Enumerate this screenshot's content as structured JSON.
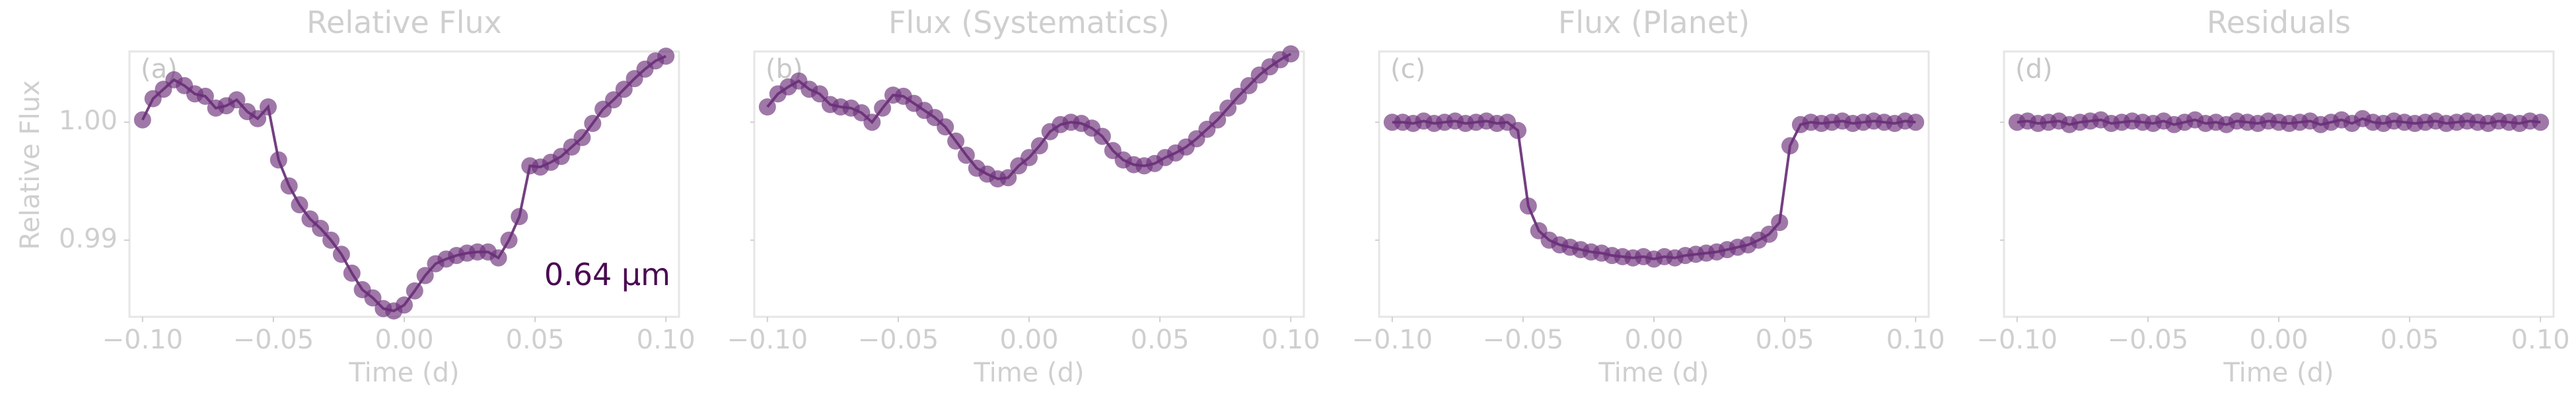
{
  "chart_data": [
    {
      "type": "line",
      "panel_label": "(a)",
      "title": "Relative Flux",
      "xlabel": "Time (d)",
      "ylabel": "Relative Flux",
      "annotation": "0.64 μm",
      "xlim": [
        -0.105,
        0.105
      ],
      "ylim": [
        0.9835,
        1.006
      ],
      "xticks": [
        -0.1,
        -0.05,
        0.0,
        0.05,
        0.1
      ],
      "xtick_labels": [
        "−0.10",
        "−0.05",
        "0.00",
        "0.05",
        "0.10"
      ],
      "yticks": [
        0.99,
        1.0
      ],
      "ytick_labels": [
        "0.99",
        "1.00"
      ],
      "series": [
        {
          "x": [
            -0.1,
            -0.096,
            -0.092,
            -0.088,
            -0.084,
            -0.08,
            -0.076,
            -0.072,
            -0.068,
            -0.064,
            -0.06,
            -0.056,
            -0.052,
            -0.048,
            -0.044,
            -0.04,
            -0.036,
            -0.032,
            -0.028,
            -0.024,
            -0.02,
            -0.016,
            -0.012,
            -0.008,
            -0.004,
            0.0,
            0.004,
            0.008,
            0.012,
            0.016,
            0.02,
            0.024,
            0.028,
            0.032,
            0.036,
            0.04,
            0.044,
            0.048,
            0.052,
            0.056,
            0.06,
            0.064,
            0.068,
            0.072,
            0.076,
            0.08,
            0.084,
            0.088,
            0.092,
            0.096,
            0.1
          ],
          "values": [
            1.0002,
            1.002,
            1.0028,
            1.0036,
            1.0031,
            1.0024,
            1.0022,
            1.0012,
            1.0014,
            1.0019,
            1.0009,
            1.0003,
            1.0013,
            0.9968,
            0.9946,
            0.993,
            0.9918,
            0.991,
            0.99,
            0.9888,
            0.9872,
            0.9858,
            0.9851,
            0.9842,
            0.984,
            0.9845,
            0.9857,
            0.987,
            0.988,
            0.9884,
            0.9887,
            0.9889,
            0.989,
            0.989,
            0.9885,
            0.99,
            0.992,
            0.9963,
            0.9962,
            0.9966,
            0.9971,
            0.9979,
            0.9987,
            0.9999,
            1.0011,
            1.0019,
            1.0028,
            1.0037,
            1.0045,
            1.0052,
            1.0056
          ]
        }
      ]
    },
    {
      "type": "line",
      "panel_label": "(b)",
      "title": "Flux (Systematics)",
      "xlabel": "Time (d)",
      "xlim": [
        -0.105,
        0.105
      ],
      "ylim": [
        0.9835,
        1.006
      ],
      "xticks": [
        -0.1,
        -0.05,
        0.0,
        0.05,
        0.1
      ],
      "xtick_labels": [
        "−0.10",
        "−0.05",
        "0.00",
        "0.05",
        "0.10"
      ],
      "series": [
        {
          "x": [
            -0.1,
            -0.096,
            -0.092,
            -0.088,
            -0.084,
            -0.08,
            -0.076,
            -0.072,
            -0.068,
            -0.064,
            -0.06,
            -0.056,
            -0.052,
            -0.048,
            -0.044,
            -0.04,
            -0.036,
            -0.032,
            -0.028,
            -0.024,
            -0.02,
            -0.016,
            -0.012,
            -0.008,
            -0.004,
            0.0,
            0.004,
            0.008,
            0.012,
            0.016,
            0.02,
            0.024,
            0.028,
            0.032,
            0.036,
            0.04,
            0.044,
            0.048,
            0.052,
            0.056,
            0.06,
            0.064,
            0.068,
            0.072,
            0.076,
            0.08,
            0.084,
            0.088,
            0.092,
            0.096,
            0.1
          ],
          "values": [
            1.0013,
            1.0024,
            1.003,
            1.0035,
            1.0028,
            1.0024,
            1.0015,
            1.0013,
            1.0012,
            1.0008,
            1.0,
            1.0012,
            1.0023,
            1.0022,
            1.0016,
            1.001,
            1.0004,
            0.9996,
            0.9984,
            0.9972,
            0.9961,
            0.9956,
            0.9952,
            0.9953,
            0.9963,
            0.997,
            0.998,
            0.9992,
            0.9998,
            1.0,
            0.9999,
            0.9995,
            0.9988,
            0.9976,
            0.9968,
            0.9964,
            0.9963,
            0.9965,
            0.997,
            0.9974,
            0.9979,
            0.9986,
            0.9994,
            1.0002,
            1.0012,
            1.0022,
            1.0031,
            1.004,
            1.0047,
            1.0053,
            1.0058
          ]
        }
      ]
    },
    {
      "type": "line",
      "panel_label": "(c)",
      "title": "Flux (Planet)",
      "xlabel": "Time (d)",
      "xlim": [
        -0.105,
        0.105
      ],
      "ylim": [
        0.9835,
        1.006
      ],
      "xticks": [
        -0.1,
        -0.05,
        0.0,
        0.05,
        0.1
      ],
      "xtick_labels": [
        "−0.10",
        "−0.05",
        "0.00",
        "0.05",
        "0.10"
      ],
      "series": [
        {
          "x": [
            -0.1,
            -0.096,
            -0.092,
            -0.088,
            -0.084,
            -0.08,
            -0.076,
            -0.072,
            -0.068,
            -0.064,
            -0.06,
            -0.056,
            -0.052,
            -0.048,
            -0.044,
            -0.04,
            -0.036,
            -0.032,
            -0.028,
            -0.024,
            -0.02,
            -0.016,
            -0.012,
            -0.008,
            -0.004,
            0.0,
            0.004,
            0.008,
            0.012,
            0.016,
            0.02,
            0.024,
            0.028,
            0.032,
            0.036,
            0.04,
            0.044,
            0.048,
            0.052,
            0.056,
            0.06,
            0.064,
            0.068,
            0.072,
            0.076,
            0.08,
            0.084,
            0.088,
            0.092,
            0.096,
            0.1
          ],
          "values": [
            1.0,
            1.0,
            0.9999,
            1.0001,
            0.9999,
            1.0,
            1.0001,
            0.9999,
            1.0,
            1.0001,
            0.9999,
            1.0,
            0.9993,
            0.9929,
            0.9908,
            0.99,
            0.9896,
            0.9894,
            0.9892,
            0.989,
            0.9889,
            0.9887,
            0.9886,
            0.9885,
            0.9886,
            0.9884,
            0.9886,
            0.9885,
            0.9887,
            0.9888,
            0.9889,
            0.989,
            0.9892,
            0.9894,
            0.9896,
            0.99,
            0.9905,
            0.9915,
            0.998,
            0.9998,
            1.0,
            0.9999,
            1.0,
            1.0001,
            0.9999,
            1.0,
            1.0001,
            1.0,
            0.9999,
            1.0001,
            1.0
          ]
        }
      ]
    },
    {
      "type": "line",
      "panel_label": "(d)",
      "title": "Residuals",
      "xlabel": "Time (d)",
      "xlim": [
        -0.105,
        0.105
      ],
      "ylim": [
        0.9835,
        1.006
      ],
      "xticks": [
        -0.1,
        -0.05,
        0.0,
        0.05,
        0.1
      ],
      "xtick_labels": [
        "−0.10",
        "−0.05",
        "0.00",
        "0.05",
        "0.10"
      ],
      "series": [
        {
          "x": [
            -0.1,
            -0.096,
            -0.092,
            -0.088,
            -0.084,
            -0.08,
            -0.076,
            -0.072,
            -0.068,
            -0.064,
            -0.06,
            -0.056,
            -0.052,
            -0.048,
            -0.044,
            -0.04,
            -0.036,
            -0.032,
            -0.028,
            -0.024,
            -0.02,
            -0.016,
            -0.012,
            -0.008,
            -0.004,
            0.0,
            0.004,
            0.008,
            0.012,
            0.016,
            0.02,
            0.024,
            0.028,
            0.032,
            0.036,
            0.04,
            0.044,
            0.048,
            0.052,
            0.056,
            0.06,
            0.064,
            0.068,
            0.072,
            0.076,
            0.08,
            0.084,
            0.088,
            0.092,
            0.096,
            0.1
          ],
          "values": [
            1.0,
            1.0001,
            0.9999,
            1.0,
            1.0001,
            0.9998,
            1.0,
            1.0001,
            1.0002,
            0.9999,
            1.0,
            1.0001,
            1.0,
            0.9999,
            1.0001,
            0.9998,
            1.0,
            1.0002,
            0.9999,
            1.0,
            0.9998,
            1.0001,
            1.0,
            0.9999,
            1.0001,
            1.0,
            0.9999,
            1.0,
            1.0001,
            0.9998,
            1.0,
            1.0002,
            0.9999,
            1.0003,
            1.0,
            0.9999,
            1.0001,
            1.0,
            0.9999,
            1.0,
            1.0001,
            0.9999,
            1.0,
            1.0001,
            1.0,
            0.9999,
            1.0001,
            1.0,
            0.9999,
            1.0001,
            1.0
          ]
        }
      ]
    }
  ],
  "colors": {
    "marker": "#6b2f7a",
    "line": "#5b1f6a",
    "annotation": "#4a0a52"
  }
}
